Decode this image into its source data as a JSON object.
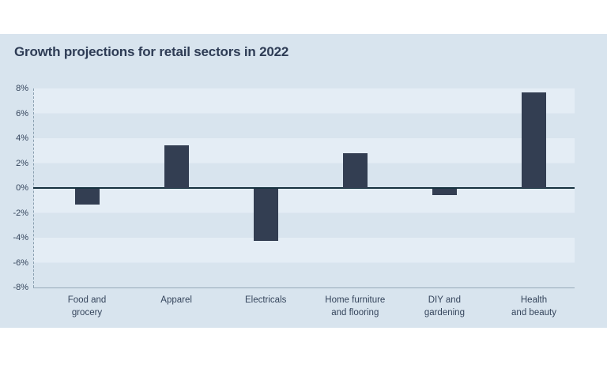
{
  "page": {
    "background": "#ffffff"
  },
  "panel": {
    "background": "#d8e4ee"
  },
  "chart_data": {
    "type": "bar",
    "title": "Growth projections for retail sectors in 2022",
    "categories": [
      "Food and\ngrocery",
      "Apparel",
      "Electricals",
      "Home furniture\nand flooring",
      "DIY and\ngardening",
      "Health\nand beauty"
    ],
    "values": [
      -1.3,
      3.4,
      -4.2,
      2.8,
      -0.5,
      7.7
    ],
    "unit": "%",
    "xlabel": "",
    "ylabel": "",
    "ylim": [
      -8,
      8
    ],
    "ytick_step": 2,
    "ytick_labels": [
      "8%",
      "6%",
      "4%",
      "2%",
      "0%",
      "-2%",
      "-4%",
      "-6%",
      "-8%"
    ],
    "grid": "horizontal-striped-bands",
    "legend_position": "none",
    "colors": {
      "bar": "#333e52",
      "zero_line": "#16323f",
      "stripe_light": "#e4edf5",
      "stripe_dark": "#d8e4ee",
      "title_text": "#2e3c55",
      "axis_text": "#35455c",
      "axis_line": "#97aab8"
    }
  }
}
